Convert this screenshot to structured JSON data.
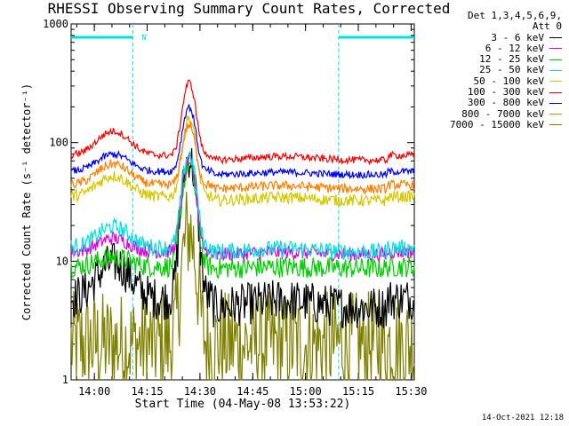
{
  "chart_data": {
    "type": "line",
    "title": "RHESSI Observing Summary Count Rates, Corrected",
    "xlabel": "Start Time (04-May-08 13:53:22)",
    "ylabel": "Corrected Count Rate (s⁻¹ detector⁻¹)",
    "yscale": "log",
    "ylim": [
      1,
      1000
    ],
    "xlim_minutes": [
      0,
      97.5
    ],
    "x_ticks": [
      {
        "label": "14:00",
        "minutes": 6.6
      },
      {
        "label": "14:15",
        "minutes": 21.6
      },
      {
        "label": "14:30",
        "minutes": 36.6
      },
      {
        "label": "14:45",
        "minutes": 51.6
      },
      {
        "label": "15:00",
        "minutes": 66.6
      },
      {
        "label": "15:15",
        "minutes": 81.6
      },
      {
        "label": "15:30",
        "minutes": 96.6
      }
    ],
    "y_ticks": [
      {
        "label": "1",
        "value": 1
      },
      {
        "label": "10",
        "value": 10
      },
      {
        "label": "100",
        "value": 100
      },
      {
        "label": "1000",
        "value": 1000
      }
    ],
    "legend_header": [
      "Det 1,3,4,5,6,9,",
      "Att 0"
    ],
    "night_marker_label": "N",
    "night_intervals_minutes": [
      [
        0,
        17.5
      ],
      [
        76.0,
        97.5
      ]
    ],
    "peak_minutes": 33.5,
    "series": [
      {
        "name": "3 - 6 keV",
        "color": "#000000",
        "base": 4.8,
        "hump": 2.0,
        "peak": 75,
        "noise": 0.18
      },
      {
        "name": "6 - 12 keV",
        "color": "#e000e0",
        "base": 12.0,
        "hump": 1.3,
        "peak": 70,
        "noise": 0.06
      },
      {
        "name": "12 - 25 keV",
        "color": "#00d000",
        "base": 9.0,
        "hump": 1.2,
        "peak": 65,
        "noise": 0.09
      },
      {
        "name": "25 - 50 keV",
        "color": "#00e0e0",
        "base": 13.0,
        "hump": 1.5,
        "peak": 80,
        "noise": 0.07
      },
      {
        "name": "50 - 100 keV",
        "color": "#d8c800",
        "base": 35.0,
        "hump": 1.5,
        "peak": 160,
        "noise": 0.05
      },
      {
        "name": "100 - 300 keV",
        "color": "#ff0000",
        "base": 78.0,
        "hump": 1.6,
        "peak": 320,
        "noise": 0.03
      },
      {
        "name": "300 - 800 keV",
        "color": "#0000ff",
        "base": 57.0,
        "hump": 1.4,
        "peak": 200,
        "noise": 0.03
      },
      {
        "name": "800 - 7000 keV",
        "color": "#ff8000",
        "base": 44.0,
        "hump": 1.5,
        "peak": 140,
        "noise": 0.04
      },
      {
        "name": "7000 - 15000 keV",
        "color": "#808000",
        "base": 2.0,
        "hump": 1.0,
        "peak": 18,
        "noise": 0.45
      }
    ]
  },
  "footer": {
    "timestamp": "14-Oct-2021 12:18"
  }
}
